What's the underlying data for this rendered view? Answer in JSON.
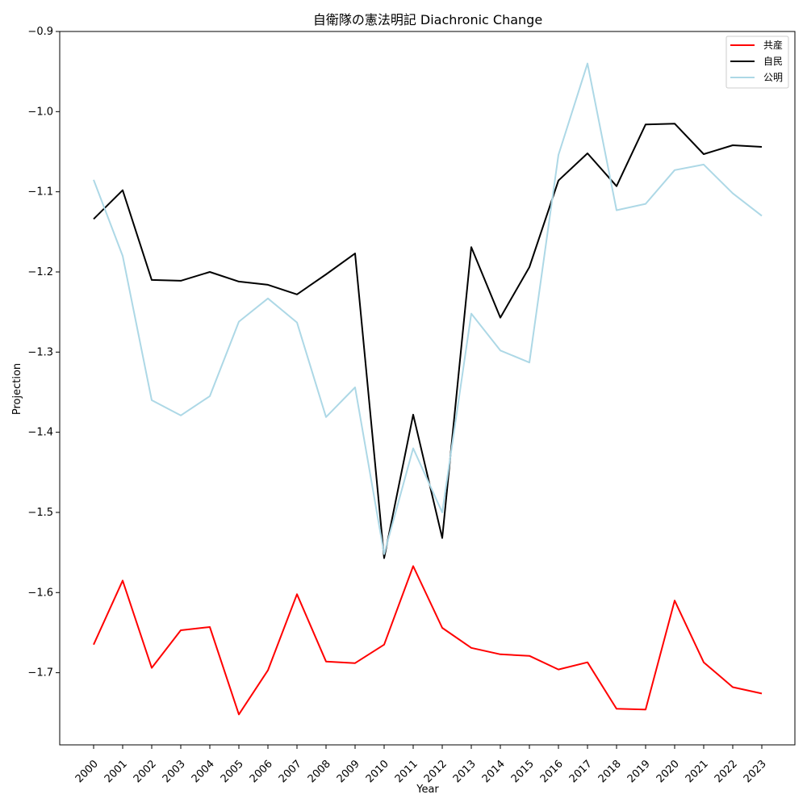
{
  "chart_data": {
    "type": "line",
    "title": "自衛隊の憲法明記 Diachronic Change",
    "xlabel": "Year",
    "ylabel": "Projection",
    "x": [
      "2000",
      "2001",
      "2002",
      "2003",
      "2004",
      "2005",
      "2006",
      "2007",
      "2008",
      "2009",
      "2010",
      "2011",
      "2012",
      "2013",
      "2014",
      "2015",
      "2016",
      "2017",
      "2018",
      "2019",
      "2020",
      "2021",
      "2022",
      "2023"
    ],
    "ylim": [
      -1.79,
      -0.9
    ],
    "yticks": [
      -0.9,
      -1.0,
      -1.1,
      -1.2,
      -1.3,
      -1.4,
      -1.5,
      -1.6,
      -1.7
    ],
    "ytick_labels": [
      "−0.9",
      "−1.0",
      "−1.1",
      "−1.2",
      "−1.3",
      "−1.4",
      "−1.5",
      "−1.6",
      "−1.7"
    ],
    "grid": false,
    "legend_position": "top-right",
    "series": [
      {
        "name": "共産",
        "color": "#ff0000",
        "values": [
          -1.665,
          -1.585,
          -1.694,
          -1.647,
          -1.643,
          -1.752,
          -1.697,
          -1.602,
          -1.686,
          -1.688,
          -1.665,
          -1.567,
          -1.644,
          -1.669,
          -1.677,
          -1.679,
          -1.696,
          -1.687,
          -1.745,
          -1.746,
          -1.61,
          -1.687,
          -1.718,
          -1.726
        ]
      },
      {
        "name": "自民",
        "color": "#000000",
        "values": [
          -1.134,
          -1.098,
          -1.21,
          -1.211,
          -1.2,
          -1.212,
          -1.216,
          -1.228,
          -1.203,
          -1.177,
          -1.557,
          -1.378,
          -1.532,
          -1.169,
          -1.257,
          -1.194,
          -1.086,
          -1.052,
          -1.093,
          -1.016,
          -1.015,
          -1.053,
          -1.042,
          -1.044
        ]
      },
      {
        "name": "公明",
        "color": "#add8e6",
        "values": [
          -1.085,
          -1.18,
          -1.36,
          -1.379,
          -1.355,
          -1.262,
          -1.233,
          -1.263,
          -1.381,
          -1.344,
          -1.552,
          -1.42,
          -1.5,
          -1.252,
          -1.298,
          -1.313,
          -1.054,
          -0.94,
          -1.123,
          -1.115,
          -1.073,
          -1.066,
          -1.102,
          -1.13
        ]
      }
    ]
  }
}
